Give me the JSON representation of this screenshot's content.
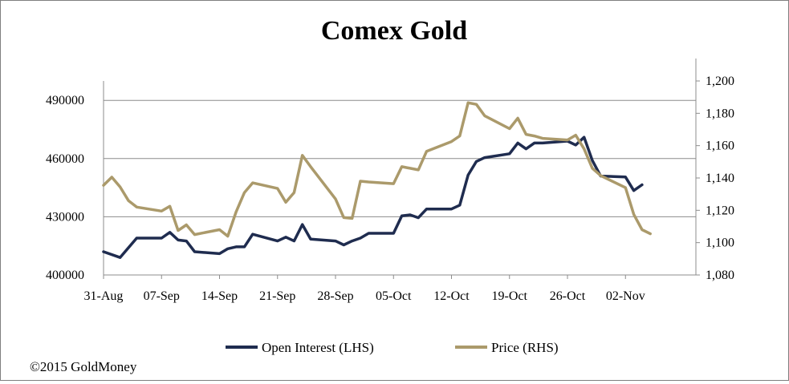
{
  "chart_data": {
    "type": "line",
    "title": "Comex Gold",
    "x_tick_labels": [
      "31-Aug",
      "07-Sep",
      "14-Sep",
      "21-Sep",
      "28-Sep",
      "05-Oct",
      "12-Oct",
      "19-Oct",
      "26-Oct",
      "02-Nov"
    ],
    "y_left": {
      "ylim": [
        400000,
        500000
      ],
      "ticks": [
        400000,
        430000,
        460000,
        490000
      ],
      "tick_labels": [
        "400000",
        "430000",
        "460000",
        "490000"
      ]
    },
    "y_right": {
      "ylim": [
        1080,
        1200
      ],
      "ticks": [
        1080,
        1100,
        1120,
        1140,
        1160,
        1180,
        1200
      ],
      "tick_labels": [
        "1,080",
        "1,100",
        "1,120",
        "1,140",
        "1,160",
        "1,180",
        "1,200"
      ]
    },
    "grid": "horizontal",
    "legend_position": "bottom",
    "series": [
      {
        "name": "Open Interest (LHS)",
        "axis": "left",
        "color": "#1f2c4f",
        "points": [
          [
            "31-Aug",
            412000
          ],
          [
            "02-Sep",
            409000
          ],
          [
            "04-Sep",
            419000
          ],
          [
            "07-Sep",
            419000
          ],
          [
            "08-Sep",
            422000
          ],
          [
            "09-Sep",
            418000
          ],
          [
            "10-Sep",
            417500
          ],
          [
            "11-Sep",
            412000
          ],
          [
            "14-Sep",
            411000
          ],
          [
            "15-Sep",
            413500
          ],
          [
            "16-Sep",
            414500
          ],
          [
            "17-Sep",
            414500
          ],
          [
            "18-Sep",
            421000
          ],
          [
            "21-Sep",
            417500
          ],
          [
            "22-Sep",
            419500
          ],
          [
            "23-Sep",
            417500
          ],
          [
            "24-Sep",
            426000
          ],
          [
            "25-Sep",
            418500
          ],
          [
            "28-Sep",
            417500
          ],
          [
            "29-Sep",
            415500
          ],
          [
            "30-Sep",
            417500
          ],
          [
            "01-Oct",
            419000
          ],
          [
            "02-Oct",
            421500
          ],
          [
            "05-Oct",
            421500
          ],
          [
            "06-Oct",
            430500
          ],
          [
            "07-Oct",
            431000
          ],
          [
            "08-Oct",
            429500
          ],
          [
            "09-Oct",
            434000
          ],
          [
            "12-Oct",
            434000
          ],
          [
            "13-Oct",
            436000
          ],
          [
            "14-Oct",
            451500
          ],
          [
            "15-Oct",
            458500
          ],
          [
            "16-Oct",
            460500
          ],
          [
            "19-Oct",
            462500
          ],
          [
            "20-Oct",
            468000
          ],
          [
            "21-Oct",
            465000
          ],
          [
            "22-Oct",
            468000
          ],
          [
            "23-Oct",
            468000
          ],
          [
            "26-Oct",
            469000
          ],
          [
            "27-Oct",
            467000
          ],
          [
            "28-Oct",
            471000
          ],
          [
            "29-Oct",
            459000
          ],
          [
            "30-Oct",
            451000
          ],
          [
            "02-Nov",
            450500
          ],
          [
            "03-Nov",
            443500
          ],
          [
            "04-Nov",
            446500
          ]
        ]
      },
      {
        "name": "Price (RHS)",
        "axis": "right",
        "color": "#ab9a6b",
        "points": [
          [
            "31-Aug",
            1135.5
          ],
          [
            "01-Sep",
            1140.5
          ],
          [
            "02-Sep",
            1134.5
          ],
          [
            "03-Sep",
            1126
          ],
          [
            "04-Sep",
            1122
          ],
          [
            "07-Sep",
            1119.5
          ],
          [
            "08-Sep",
            1122.5
          ],
          [
            "09-Sep",
            1107.5
          ],
          [
            "10-Sep",
            1111
          ],
          [
            "11-Sep",
            1105
          ],
          [
            "14-Sep",
            1108
          ],
          [
            "15-Sep",
            1104
          ],
          [
            "16-Sep",
            1119
          ],
          [
            "17-Sep",
            1131
          ],
          [
            "18-Sep",
            1137
          ],
          [
            "21-Sep",
            1133.5
          ],
          [
            "22-Sep",
            1125
          ],
          [
            "23-Sep",
            1131
          ],
          [
            "24-Sep",
            1154
          ],
          [
            "25-Sep",
            1147
          ],
          [
            "28-Sep",
            1127
          ],
          [
            "29-Sep",
            1115.5
          ],
          [
            "30-Sep",
            1115
          ],
          [
            "01-Oct",
            1138
          ],
          [
            "02-Oct",
            1137.5
          ],
          [
            "05-Oct",
            1136.5
          ],
          [
            "06-Oct",
            1147
          ],
          [
            "07-Oct",
            1146
          ],
          [
            "08-Oct",
            1145
          ],
          [
            "09-Oct",
            1156.5
          ],
          [
            "12-Oct",
            1162.5
          ],
          [
            "13-Oct",
            1166
          ],
          [
            "14-Oct",
            1186.5
          ],
          [
            "15-Oct",
            1185.5
          ],
          [
            "16-Oct",
            1178.5
          ],
          [
            "19-Oct",
            1170.5
          ],
          [
            "20-Oct",
            1177
          ],
          [
            "21-Oct",
            1167
          ],
          [
            "22-Oct",
            1166
          ],
          [
            "23-Oct",
            1164.5
          ],
          [
            "26-Oct",
            1163.5
          ],
          [
            "27-Oct",
            1166.5
          ],
          [
            "28-Oct",
            1158
          ],
          [
            "29-Oct",
            1146
          ],
          [
            "30-Oct",
            1141.5
          ],
          [
            "02-Nov",
            1134
          ],
          [
            "03-Nov",
            1117.5
          ],
          [
            "04-Nov",
            1108
          ],
          [
            "05-Nov",
            1105.5
          ]
        ]
      }
    ]
  },
  "footer": {
    "copyright": "©2015 GoldMoney"
  }
}
